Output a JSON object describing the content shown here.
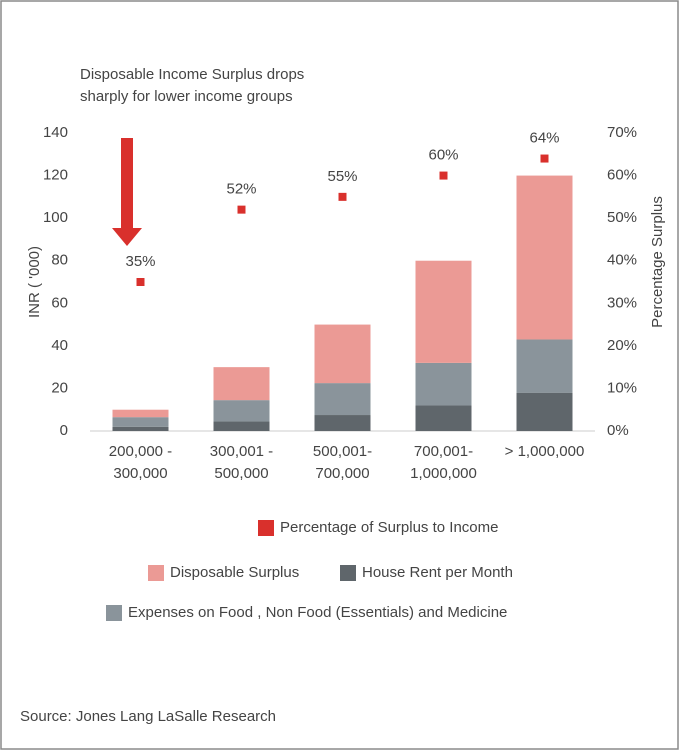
{
  "chart_data": {
    "type": "bar",
    "stacked": true,
    "title": "Disposable Income Surplus drops\nsharply for lower income  groups",
    "categories": [
      "200,000 -\n300,000",
      "300,001 -\n500,000",
      "500,001-\n700,000",
      "700,001-\n1,000,000",
      "> 1,000,000"
    ],
    "series": [
      {
        "name": "House Rent per Month",
        "color": "#5f666b",
        "values": [
          2,
          4.5,
          7.5,
          12,
          18
        ]
      },
      {
        "name": "Expenses on Food , Non Food (Essentials) and Medicine",
        "color": "#8a949b",
        "values": [
          4.5,
          10,
          15,
          20,
          25
        ]
      },
      {
        "name": "Disposable Surplus",
        "color": "#eb9a95",
        "values": [
          3.5,
          15.5,
          27.5,
          48,
          77
        ]
      },
      {
        "name": "Percentage of Surplus to Income",
        "color": "#d9302c",
        "axis": "y2",
        "marker": "square",
        "values": [
          35,
          52,
          55,
          60,
          64
        ],
        "value_labels": [
          "35%",
          "52%",
          "55%",
          "60%",
          "64%"
        ]
      }
    ],
    "ylabel": "INR ( '000)",
    "y2label": "Percentage Surplus",
    "ylim": [
      0,
      140
    ],
    "yticks": [
      0,
      20,
      40,
      60,
      80,
      100,
      120,
      140
    ],
    "y2lim": [
      0,
      70
    ],
    "y2ticks": [
      {
        "value": 0,
        "label": "0%"
      },
      {
        "value": 10,
        "label": "10%"
      },
      {
        "value": 20,
        "label": "20%"
      },
      {
        "value": 30,
        "label": "30%"
      },
      {
        "value": 40,
        "label": "40%"
      },
      {
        "value": 50,
        "label": "50%"
      },
      {
        "value": 60,
        "label": "60%"
      },
      {
        "value": 70,
        "label": "70%"
      }
    ],
    "grid": false,
    "source": "Source: Jones Lang LaSalle Research"
  }
}
